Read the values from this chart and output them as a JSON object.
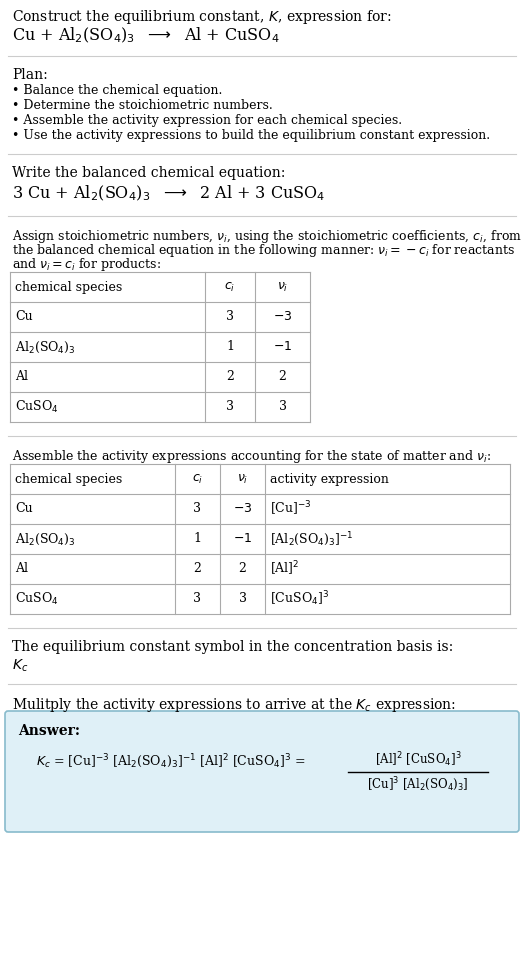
{
  "bg_color": "#ffffff",
  "text_color": "#000000",
  "line_color": "#cccccc",
  "table_line_color": "#aaaaaa",
  "answer_box_color": "#dff0f7",
  "answer_box_border": "#88bbcc",
  "title_text": "Construct the equilibrium constant, $K$, expression for:",
  "reaction_unbalanced": "Cu + Al$_2$(SO$_4$)$_3$  $\\longrightarrow$  Al + CuSO$_4$",
  "plan_header": "Plan:",
  "balanced_header": "Write the balanced chemical equation:",
  "reaction_balanced": "3 Cu + Al$_2$(SO$_4$)$_3$  $\\longrightarrow$  2 Al + 3 CuSO$_4$",
  "stoich_line1": "Assign stoichiometric numbers, $\\nu_i$, using the stoichiometric coefficients, $c_i$, from",
  "stoich_line2": "the balanced chemical equation in the following manner: $\\nu_i = -c_i$ for reactants",
  "stoich_line3": "and $\\nu_i = c_i$ for products:",
  "table1_rows": [
    [
      "Cu",
      "3",
      "$-3$"
    ],
    [
      "Al$_2$(SO$_4$)$_3$",
      "1",
      "$-1$"
    ],
    [
      "Al",
      "2",
      "2"
    ],
    [
      "CuSO$_4$",
      "3",
      "3"
    ]
  ],
  "activity_header": "Assemble the activity expressions accounting for the state of matter and $\\nu_i$:",
  "table2_rows": [
    [
      "Cu",
      "3",
      "$-3$",
      "[Cu]$^{-3}$"
    ],
    [
      "Al$_2$(SO$_4$)$_3$",
      "1",
      "$-1$",
      "[Al$_2$(SO$_4$)$_3$]$^{-1}$"
    ],
    [
      "Al",
      "2",
      "2",
      "[Al]$^2$"
    ],
    [
      "CuSO$_4$",
      "3",
      "3",
      "[CuSO$_4$]$^3$"
    ]
  ],
  "kc_symbol_text": "The equilibrium constant symbol in the concentration basis is:",
  "kc_symbol": "$K_c$",
  "multiply_text": "Mulitply the activity expressions to arrive at the $K_c$ expression:",
  "answer_label": "Answer:",
  "answer_eq": "$K_c$ = [Cu]$^{-3}$ [Al$_2$(SO$_4$)$_3$]$^{-1}$ [Al]$^2$ [CuSO$_4$]$^3$ =",
  "frac_num": "[Al]$^2$ [CuSO$_4$]$^3$",
  "frac_den": "[Cu]$^3$ [Al$_2$(SO$_4$)$_3$]"
}
